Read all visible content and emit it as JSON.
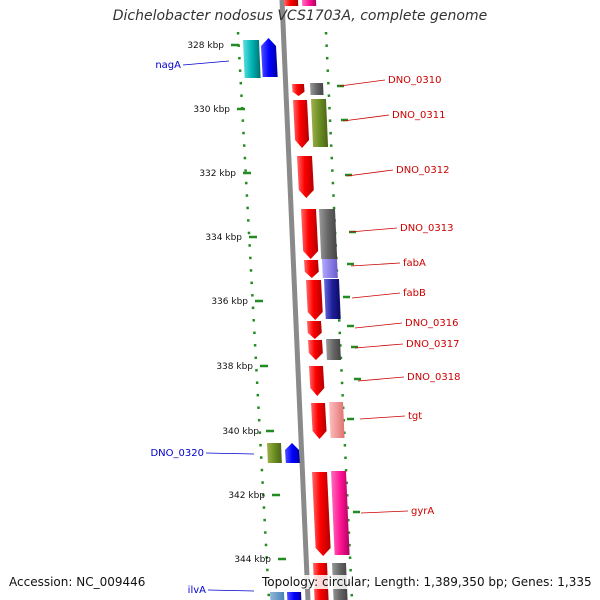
{
  "title": "Dichelobacter nodosus VCS1703A, complete genome",
  "accession": "Accession: NC_009446",
  "summary": "Topology: circular; Length: 1,389,350 bp; Genes: 1,335",
  "ticks": [
    "328 kbp",
    "330 kbp",
    "332 kbp",
    "334 kbp",
    "336 kbp",
    "338 kbp",
    "340 kbp",
    "342 kbp",
    "344 kbp"
  ],
  "genes_right": [
    "DNO_0310",
    "DNO_0311",
    "DNO_0312",
    "DNO_0313",
    "fabA",
    "fabB",
    "DNO_0316",
    "DNO_0317",
    "DNO_0318",
    "tgt",
    "gyrA"
  ],
  "genes_left": [
    "nagA",
    "DNO_0320",
    "ilvA"
  ],
  "colors": {
    "backbone": "#808080",
    "dots": "#228b22",
    "cds": "#ff0000",
    "label_right": "#cc0000",
    "label_left": "#0000cc"
  }
}
